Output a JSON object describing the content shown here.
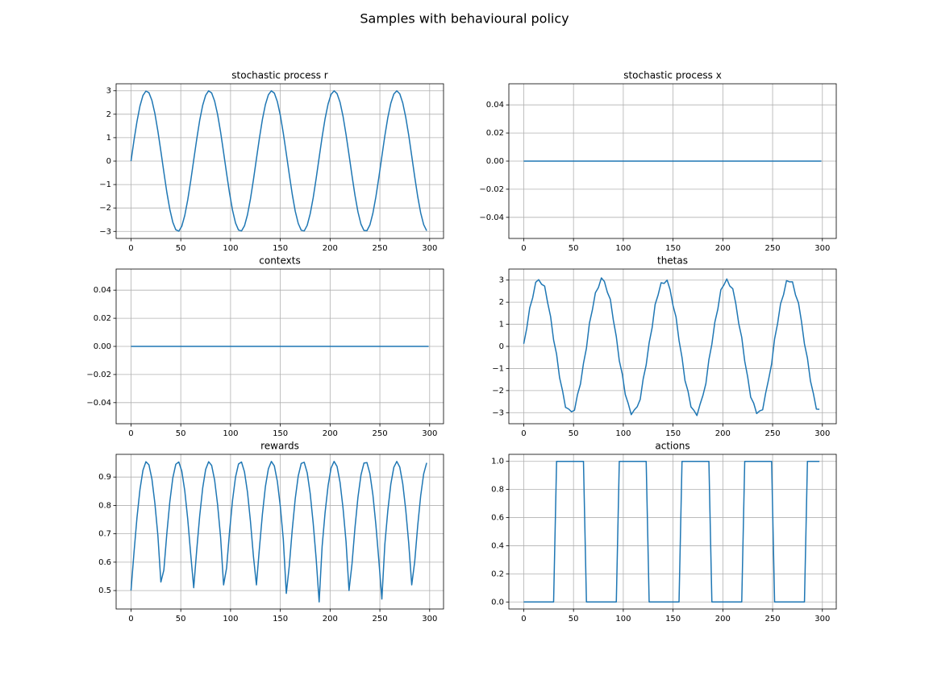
{
  "title": "Samples with behavioural policy",
  "chart_data": [
    {
      "type": "line",
      "title": "stochastic process r",
      "color": "#1f77b4",
      "grid": true,
      "xlim": [
        -14.95,
        313.95
      ],
      "xticks": [
        0,
        50,
        100,
        150,
        200,
        250,
        300
      ],
      "ylim": [
        -3.3,
        3.3
      ],
      "yticks": [
        {
          "value": -3,
          "label": "−3"
        },
        {
          "value": -2,
          "label": "−2"
        },
        {
          "value": -1,
          "label": "−1"
        },
        0,
        1,
        2,
        3
      ],
      "x": [
        0,
        3,
        6,
        9,
        12,
        15,
        18,
        21,
        24,
        27,
        30,
        33,
        36,
        39,
        42,
        45,
        48,
        51,
        54,
        57,
        60,
        63,
        66,
        69,
        72,
        75,
        78,
        81,
        84,
        87,
        90,
        93,
        96,
        99,
        102,
        105,
        108,
        111,
        114,
        117,
        120,
        123,
        126,
        129,
        132,
        135,
        138,
        141,
        144,
        147,
        150,
        153,
        156,
        159,
        162,
        165,
        168,
        171,
        174,
        177,
        180,
        183,
        186,
        189,
        192,
        195,
        198,
        201,
        204,
        207,
        210,
        213,
        216,
        219,
        222,
        225,
        228,
        231,
        234,
        237,
        240,
        243,
        246,
        249,
        252,
        255,
        258,
        261,
        264,
        267,
        270,
        273,
        276,
        279,
        282,
        285,
        288,
        291,
        294,
        297
      ],
      "values": [
        0,
        0.89,
        1.69,
        2.35,
        2.8,
        2.99,
        2.92,
        2.59,
        2.03,
        1.28,
        0.42,
        -0.47,
        -1.33,
        -2.06,
        -2.61,
        -2.93,
        -2.99,
        -2.78,
        -2.32,
        -1.65,
        -0.84,
        0.05,
        0.93,
        1.74,
        2.38,
        2.81,
        3.0,
        2.91,
        2.56,
        1.99,
        1.24,
        0.37,
        -0.52,
        -1.37,
        -2.1,
        -2.64,
        -2.94,
        -2.98,
        -2.76,
        -2.29,
        -1.61,
        -0.79,
        0.1,
        0.98,
        1.78,
        2.41,
        2.83,
        3.0,
        2.9,
        2.54,
        1.95,
        1.19,
        0.32,
        -0.57,
        -1.42,
        -2.14,
        -2.66,
        -2.95,
        -2.98,
        -2.74,
        -2.25,
        -1.57,
        -0.74,
        0.15,
        1.03,
        1.82,
        2.44,
        2.85,
        3.0,
        2.88,
        2.51,
        1.91,
        1.14,
        0.27,
        -0.62,
        -1.46,
        -2.17,
        -2.69,
        -2.96,
        -2.97,
        -2.72,
        -2.22,
        -1.52,
        -0.69,
        0.2,
        1.08,
        1.86,
        2.47,
        2.86,
        3.0,
        2.87,
        2.48,
        1.87,
        1.1,
        0.22,
        -0.67,
        -1.51,
        -2.21,
        -2.71,
        -2.97
      ]
    },
    {
      "type": "line",
      "title": "stochastic process x",
      "color": "#1f77b4",
      "grid": true,
      "xlim": [
        -14.95,
        313.95
      ],
      "xticks": [
        0,
        50,
        100,
        150,
        200,
        250,
        300
      ],
      "ylim": [
        -0.055,
        0.055
      ],
      "yticks": [
        {
          "value": -0.04,
          "label": "−0.04"
        },
        {
          "value": -0.02,
          "label": "−0.02"
        },
        {
          "value": 0,
          "label": "0.00"
        },
        {
          "value": 0.02,
          "label": "0.02"
        },
        {
          "value": 0.04,
          "label": "0.04"
        }
      ],
      "x": [
        0,
        299
      ],
      "values": [
        0,
        0
      ]
    },
    {
      "type": "line",
      "title": "contexts",
      "color": "#1f77b4",
      "grid": true,
      "xlim": [
        -14.95,
        313.95
      ],
      "xticks": [
        0,
        50,
        100,
        150,
        200,
        250,
        300
      ],
      "ylim": [
        -0.055,
        0.055
      ],
      "yticks": [
        {
          "value": -0.04,
          "label": "−0.04"
        },
        {
          "value": -0.02,
          "label": "−0.02"
        },
        {
          "value": 0,
          "label": "0.00"
        },
        {
          "value": 0.02,
          "label": "0.02"
        },
        {
          "value": 0.04,
          "label": "0.04"
        }
      ],
      "x": [
        0,
        299
      ],
      "values": [
        0,
        0
      ]
    },
    {
      "type": "line",
      "title": "thetas",
      "color": "#1f77b4",
      "grid": true,
      "xlim": [
        -14.95,
        313.95
      ],
      "xticks": [
        0,
        50,
        100,
        150,
        200,
        250,
        300
      ],
      "ylim": [
        -3.5,
        3.5
      ],
      "yticks": [
        {
          "value": -3,
          "label": "−3"
        },
        {
          "value": -2,
          "label": "−2"
        },
        {
          "value": -1,
          "label": "−1"
        },
        0,
        1,
        2,
        3
      ],
      "x": [
        0,
        3,
        6,
        9,
        12,
        15,
        18,
        21,
        24,
        27,
        30,
        33,
        36,
        39,
        42,
        45,
        48,
        51,
        54,
        57,
        60,
        63,
        66,
        69,
        72,
        75,
        78,
        81,
        84,
        87,
        90,
        93,
        96,
        99,
        102,
        105,
        108,
        111,
        114,
        117,
        120,
        123,
        126,
        129,
        132,
        135,
        138,
        141,
        144,
        147,
        150,
        153,
        156,
        159,
        162,
        165,
        168,
        171,
        174,
        177,
        180,
        183,
        186,
        189,
        192,
        195,
        198,
        201,
        204,
        207,
        210,
        213,
        216,
        219,
        222,
        225,
        228,
        231,
        234,
        237,
        240,
        243,
        246,
        249,
        252,
        255,
        258,
        261,
        264,
        267,
        270,
        273,
        276,
        279,
        282,
        285,
        288,
        291,
        294,
        297
      ],
      "values": [
        0.12,
        0.81,
        1.74,
        2.2,
        2.9,
        3.02,
        2.81,
        2.73,
        1.98,
        1.35,
        0.29,
        -0.35,
        -1.41,
        -2.01,
        -2.76,
        -2.83,
        -2.96,
        -2.89,
        -2.18,
        -1.7,
        -0.77,
        -0.08,
        1.05,
        1.66,
        2.43,
        2.66,
        3.1,
        2.94,
        2.45,
        2.13,
        1.19,
        0.44,
        -0.65,
        -1.25,
        -2.18,
        -2.59,
        -3.09,
        -2.88,
        -2.73,
        -2.4,
        -1.47,
        -0.84,
        0.17,
        0.85,
        1.9,
        2.33,
        2.88,
        2.85,
        3.0,
        2.57,
        1.84,
        1.33,
        0.27,
        -0.5,
        -1.55,
        -2.02,
        -2.74,
        -2.9,
        -3.13,
        -2.64,
        -2.22,
        -1.68,
        -0.6,
        0.1,
        1.1,
        1.69,
        2.56,
        2.77,
        3.05,
        2.73,
        2.61,
        1.94,
        1.03,
        0.41,
        -0.67,
        -1.39,
        -2.3,
        -2.57,
        -3.04,
        -2.92,
        -2.87,
        -2.12,
        -1.49,
        -0.8,
        0.34,
        1.03,
        1.93,
        2.34,
        2.98,
        2.92,
        2.92,
        2.33,
        1.97,
        1.13,
        0.11,
        -0.53,
        -1.56,
        -2.14,
        -2.84,
        -2.85
      ]
    },
    {
      "type": "line",
      "title": "rewards",
      "color": "#1f77b4",
      "grid": true,
      "xlim": [
        -14.95,
        313.95
      ],
      "xticks": [
        0,
        50,
        100,
        150,
        200,
        250,
        300
      ],
      "ylim": [
        0.435,
        0.98
      ],
      "yticks": [
        0.5,
        0.6,
        0.7,
        0.8,
        0.9
      ],
      "x": [
        0,
        3,
        6,
        9,
        12,
        15,
        18,
        21,
        24,
        27,
        30,
        33,
        36,
        39,
        42,
        45,
        48,
        51,
        54,
        57,
        60,
        63,
        66,
        69,
        72,
        75,
        78,
        81,
        84,
        87,
        90,
        93,
        96,
        99,
        102,
        105,
        108,
        111,
        114,
        117,
        120,
        123,
        126,
        129,
        132,
        135,
        138,
        141,
        144,
        147,
        150,
        153,
        156,
        159,
        162,
        165,
        168,
        171,
        174,
        177,
        180,
        183,
        186,
        189,
        192,
        195,
        198,
        201,
        204,
        207,
        210,
        213,
        216,
        219,
        222,
        225,
        228,
        231,
        234,
        237,
        240,
        243,
        246,
        249,
        252,
        255,
        258,
        261,
        264,
        267,
        270,
        273,
        276,
        279,
        282,
        285,
        288,
        291,
        294,
        297
      ],
      "values": [
        0.5,
        0.634,
        0.757,
        0.856,
        0.924,
        0.954,
        0.943,
        0.893,
        0.807,
        0.694,
        0.53,
        0.572,
        0.701,
        0.813,
        0.897,
        0.945,
        0.953,
        0.921,
        0.852,
        0.751,
        0.627,
        0.51,
        0.642,
        0.763,
        0.861,
        0.927,
        0.954,
        0.941,
        0.889,
        0.802,
        0.688,
        0.52,
        0.579,
        0.708,
        0.818,
        0.9,
        0.946,
        0.953,
        0.918,
        0.847,
        0.744,
        0.62,
        0.52,
        0.649,
        0.769,
        0.866,
        0.929,
        0.955,
        0.939,
        0.885,
        0.796,
        0.68,
        0.49,
        0.587,
        0.715,
        0.824,
        0.904,
        0.948,
        0.952,
        0.915,
        0.842,
        0.738,
        0.612,
        0.46,
        0.656,
        0.776,
        0.87,
        0.932,
        0.955,
        0.937,
        0.881,
        0.79,
        0.673,
        0.5,
        0.594,
        0.722,
        0.829,
        0.907,
        0.949,
        0.951,
        0.912,
        0.837,
        0.731,
        0.605,
        0.47,
        0.663,
        0.782,
        0.875,
        0.934,
        0.955,
        0.935,
        0.876,
        0.784,
        0.666,
        0.52,
        0.602,
        0.728,
        0.834,
        0.911,
        0.95
      ]
    },
    {
      "type": "line",
      "title": "actions",
      "color": "#1f77b4",
      "grid": true,
      "xlim": [
        -14.95,
        313.95
      ],
      "xticks": [
        0,
        50,
        100,
        150,
        200,
        250,
        300
      ],
      "ylim": [
        -0.05,
        1.05
      ],
      "yticks": [
        {
          "value": 0,
          "label": "0.0"
        },
        0.2,
        0.4,
        0.6,
        0.8,
        {
          "value": 1,
          "label": "1.0"
        }
      ],
      "x": [
        0,
        3,
        6,
        9,
        12,
        15,
        18,
        21,
        24,
        27,
        30,
        33,
        36,
        39,
        42,
        45,
        48,
        51,
        54,
        57,
        60,
        63,
        66,
        69,
        72,
        75,
        78,
        81,
        84,
        87,
        90,
        93,
        96,
        99,
        102,
        105,
        108,
        111,
        114,
        117,
        120,
        123,
        126,
        129,
        132,
        135,
        138,
        141,
        144,
        147,
        150,
        153,
        156,
        159,
        162,
        165,
        168,
        171,
        174,
        177,
        180,
        183,
        186,
        189,
        192,
        195,
        198,
        201,
        204,
        207,
        210,
        213,
        216,
        219,
        222,
        225,
        228,
        231,
        234,
        237,
        240,
        243,
        246,
        249,
        252,
        255,
        258,
        261,
        264,
        267,
        270,
        273,
        276,
        279,
        282,
        285,
        288,
        291,
        294,
        297
      ],
      "values": [
        0,
        0,
        0,
        0,
        0,
        0,
        0,
        0,
        0,
        0,
        0,
        1,
        1,
        1,
        1,
        1,
        1,
        1,
        1,
        1,
        1,
        0,
        0,
        0,
        0,
        0,
        0,
        0,
        0,
        0,
        0,
        0,
        1,
        1,
        1,
        1,
        1,
        1,
        1,
        1,
        1,
        1,
        0,
        0,
        0,
        0,
        0,
        0,
        0,
        0,
        0,
        0,
        0,
        1,
        1,
        1,
        1,
        1,
        1,
        1,
        1,
        1,
        1,
        0,
        0,
        0,
        0,
        0,
        0,
        0,
        0,
        0,
        0,
        0,
        1,
        1,
        1,
        1,
        1,
        1,
        1,
        1,
        1,
        1,
        0,
        0,
        0,
        0,
        0,
        0,
        0,
        0,
        0,
        0,
        0,
        1,
        1,
        1,
        1,
        1
      ]
    }
  ]
}
